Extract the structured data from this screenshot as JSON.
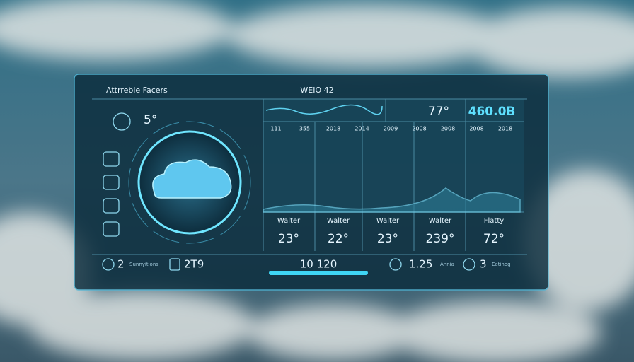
{
  "header": {
    "title": "Attrreble Facers",
    "center": "WEIO 42"
  },
  "current": {
    "temp": "5°"
  },
  "top_stats": [
    "77°",
    "460.0B"
  ],
  "columns": [
    "111",
    "355",
    "2018",
    "2014",
    "2009",
    "2008",
    "2008",
    "2008",
    "2018"
  ],
  "forecast": [
    {
      "label": "Walter",
      "value": "23°"
    },
    {
      "label": "Walter",
      "value": "22°"
    },
    {
      "label": "Walter",
      "value": "23°"
    },
    {
      "label": "Walter",
      "value": "239°"
    },
    {
      "label": "Flatty",
      "value": "72°"
    }
  ],
  "footer": [
    {
      "value": "2",
      "note": "Sunnyitions"
    },
    {
      "value": "2T9"
    },
    {
      "value": "10 120"
    },
    {
      "value": "1.25",
      "note": "Annia"
    },
    {
      "value": "3",
      "note": "Eatinog"
    }
  ]
}
